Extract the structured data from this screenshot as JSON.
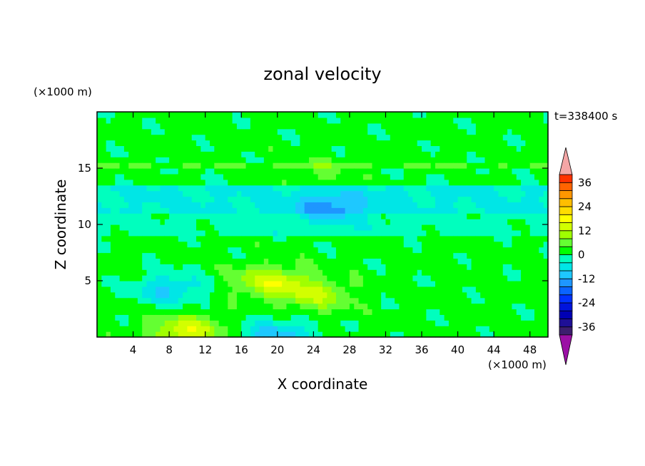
{
  "chart_data": {
    "type": "heatmap",
    "title": "zonal velocity",
    "xlabel": "X coordinate",
    "ylabel": "Z coordinate",
    "x_unit": "(×1000 m)",
    "y_unit": "(×1000 m)",
    "time_label": "t=338400 s",
    "xlim": [
      0,
      50
    ],
    "ylim": [
      0,
      20
    ],
    "x_ticks": [
      4,
      8,
      12,
      16,
      20,
      24,
      28,
      32,
      36,
      40,
      44,
      48
    ],
    "y_ticks": [
      5,
      10,
      15
    ],
    "grid": false,
    "legend": "right",
    "colorbar": {
      "levels": [
        -40,
        -36,
        -32,
        -28,
        -24,
        -20,
        -16,
        -12,
        -8,
        -4,
        0,
        4,
        8,
        12,
        16,
        20,
        24,
        28,
        32,
        36,
        40
      ],
      "tick_labels": [
        36,
        24,
        12,
        0,
        -12,
        -24,
        -36
      ],
      "colors": [
        "#3c1e6e",
        "#1e0f96",
        "#0000b4",
        "#0014dc",
        "#0032ff",
        "#0a64ff",
        "#1e96ff",
        "#1ec8ff",
        "#00e6e6",
        "#00ffbe",
        "#00ff00",
        "#64ff32",
        "#a0ff00",
        "#d2ff00",
        "#ffff00",
        "#ffdc00",
        "#ffbe00",
        "#ff9600",
        "#ff6400",
        "#ff3200"
      ],
      "under_color": "#9b10a5",
      "over_color": "#f4a6a6"
    },
    "features": [
      {
        "x": 10,
        "z": 0.5,
        "value": 16
      },
      {
        "x": 19,
        "z": 5.0,
        "value": 14
      },
      {
        "x": 24,
        "z": 3.8,
        "value": 12
      },
      {
        "x": 20,
        "z": 0.2,
        "value": -10
      },
      {
        "x": 8,
        "z": 4.3,
        "value": -8
      },
      {
        "x": 26,
        "z": 11.5,
        "value": -8
      },
      {
        "x": 25,
        "z": 14.5,
        "value": 6
      }
    ]
  }
}
